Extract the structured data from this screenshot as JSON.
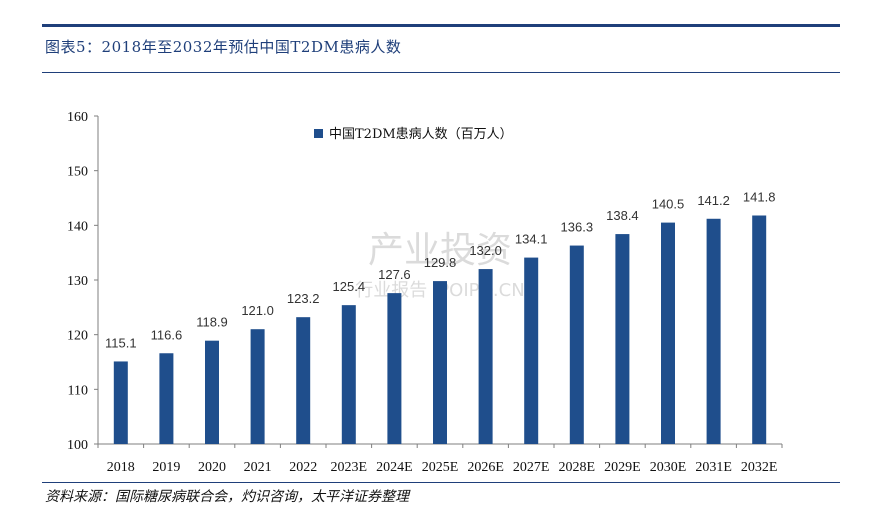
{
  "header": {
    "title": "图表5：2018年至2032年预估中国T2DM患病人数"
  },
  "footer": {
    "source": "资料来源：国际糖尿病联合会，灼识咨询，太平洋证券整理"
  },
  "watermark": {
    "line1": "产业投资",
    "line2": "行业报告 IPOIPO.CN"
  },
  "colors": {
    "bar": "#1f4e8c",
    "accent": "#1f3f7a"
  },
  "chart_data": {
    "type": "bar",
    "title": "",
    "xlabel": "",
    "ylabel": "",
    "ylim": [
      100,
      160
    ],
    "yticks": [
      100,
      110,
      120,
      130,
      140,
      150,
      160
    ],
    "legend_position": "top-center",
    "grid": false,
    "categories": [
      "2018",
      "2019",
      "2020",
      "2021",
      "2022",
      "2023E",
      "2024E",
      "2025E",
      "2026E",
      "2027E",
      "2028E",
      "2029E",
      "2030E",
      "2031E",
      "2032E"
    ],
    "series": [
      {
        "name": "中国T2DM患病人数（百万人）",
        "values": [
          115.1,
          116.6,
          118.9,
          121.0,
          123.2,
          125.4,
          127.6,
          129.8,
          132.0,
          134.1,
          136.3,
          138.4,
          140.5,
          141.2,
          141.8
        ],
        "labels": [
          "115.1",
          "116.6",
          "118.9",
          "121.0",
          "123.2",
          "125.4",
          "127.6",
          "129.8",
          "132.0",
          "134.1",
          "136.3",
          "138.4",
          "140.5",
          "141.2",
          "141.8"
        ]
      }
    ]
  }
}
